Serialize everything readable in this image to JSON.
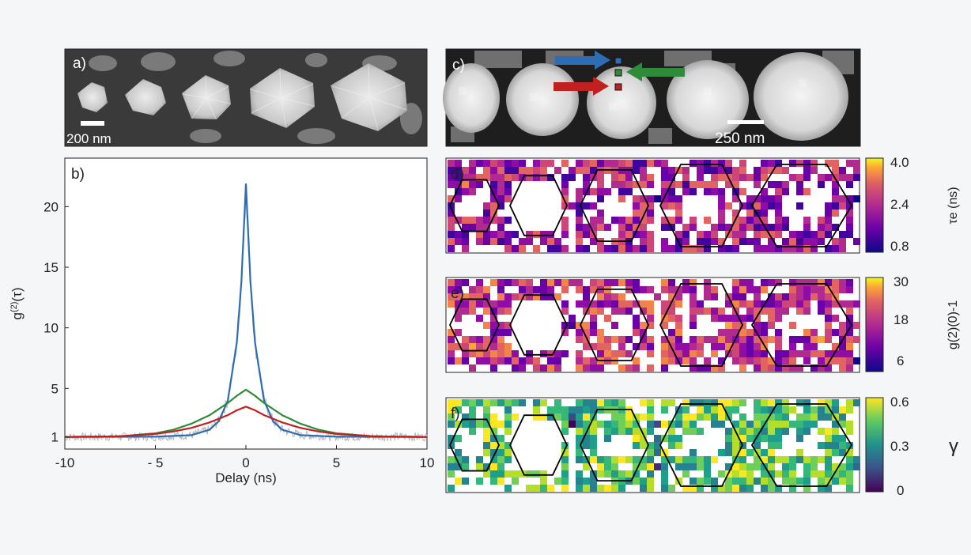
{
  "panels": {
    "a": {
      "label": "a)",
      "scalebar": "200 nm"
    },
    "b": {
      "label": "b)"
    },
    "c": {
      "label": "c)",
      "scalebar": "250 nm"
    },
    "d": {
      "label": "d)",
      "colorbar_label": "τe (ns)",
      "ticks": [
        "4.0",
        "2.4",
        "0.8"
      ],
      "range": [
        0.8,
        4.0
      ],
      "colormap": "plasma"
    },
    "e": {
      "label": "e)",
      "colorbar_label": "g(2)(0)-1",
      "ticks": [
        "30",
        "18",
        "6"
      ],
      "range": [
        6,
        30
      ],
      "colormap": "plasma"
    },
    "f": {
      "label": "f)",
      "colorbar_label": "γ",
      "ticks": [
        "0.6",
        "0.3",
        "0"
      ],
      "range": [
        0,
        0.6
      ],
      "colormap": "viridis"
    }
  },
  "chart_data": [
    {
      "type": "line",
      "panel": "b",
      "xlabel": "Delay (ns)",
      "ylabel": "g(2)(τ)",
      "xlim": [
        -10,
        10
      ],
      "ylim": [
        0,
        24
      ],
      "xticks": [
        -10,
        -5,
        0,
        5,
        10
      ],
      "xtick_labels": [
        "-10",
        "- 5",
        "0",
        "5",
        "10"
      ],
      "yticks": [
        1,
        5,
        10,
        15,
        20
      ],
      "grid": false,
      "series": [
        {
          "color": "#2e6db4",
          "x": [
            -10,
            -5,
            -3,
            -2,
            -1.5,
            -1,
            -0.5,
            -0.25,
            0,
            0.25,
            0.5,
            1,
            1.5,
            2,
            3,
            5,
            10
          ],
          "values": [
            1.0,
            1.02,
            1.15,
            1.6,
            2.3,
            4.0,
            8.8,
            13.8,
            21.9,
            13.8,
            8.8,
            4.0,
            2.3,
            1.6,
            1.15,
            1.02,
            1.0
          ]
        },
        {
          "color": "#2e8b3a",
          "x": [
            -10,
            -7,
            -5,
            -4,
            -3,
            -2,
            -1,
            -0.5,
            0,
            0.5,
            1,
            2,
            3,
            4,
            5,
            7,
            10
          ],
          "values": [
            1.0,
            1.05,
            1.3,
            1.6,
            2.1,
            2.8,
            3.8,
            4.4,
            4.9,
            4.4,
            3.8,
            2.8,
            2.1,
            1.6,
            1.3,
            1.05,
            1.0
          ]
        },
        {
          "color": "#c0211f",
          "x": [
            -10,
            -7,
            -5,
            -4,
            -3,
            -2,
            -1,
            -0.5,
            0,
            0.5,
            1,
            2,
            3,
            4,
            5,
            7,
            10
          ],
          "values": [
            1.0,
            1.05,
            1.25,
            1.45,
            1.75,
            2.2,
            2.8,
            3.2,
            3.5,
            3.2,
            2.8,
            2.2,
            1.75,
            1.45,
            1.25,
            1.05,
            1.0
          ]
        }
      ]
    }
  ]
}
